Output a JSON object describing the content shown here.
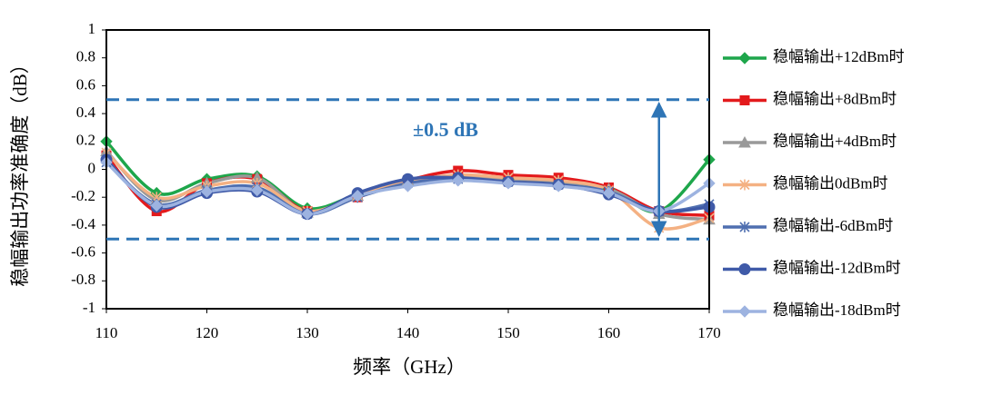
{
  "chart_data": {
    "type": "line",
    "x_label": "频率（GHz）",
    "y_label": "稳幅输出功率准确度（dB）",
    "x": [
      110,
      115,
      120,
      125,
      130,
      135,
      140,
      145,
      150,
      155,
      160,
      165,
      170
    ],
    "xlim": [
      110,
      170
    ],
    "xticks": [
      110,
      120,
      130,
      140,
      150,
      160,
      170
    ],
    "ylim": [
      -1,
      1
    ],
    "yticks": [
      1,
      0.8,
      0.6,
      0.4,
      0.2,
      0,
      -0.2,
      -0.4,
      -0.6,
      -0.8,
      -1
    ],
    "reference_lines": [
      0.5,
      -0.5
    ],
    "reference_color": "#2e75b6",
    "annotation": {
      "text": "±0.5 dB",
      "x": 165
    },
    "legend": "right",
    "series": [
      {
        "name": "稳幅输出+12dBm时",
        "color": "#1ea64b",
        "marker": "diamond",
        "values": [
          0.2,
          -0.17,
          -0.07,
          -0.05,
          -0.28,
          -0.18,
          -0.08,
          -0.05,
          -0.07,
          -0.1,
          -0.14,
          -0.3,
          0.07
        ]
      },
      {
        "name": "稳幅输出+8dBm时",
        "color": "#e31a1c",
        "marker": "square",
        "values": [
          0.1,
          -0.3,
          -0.1,
          -0.07,
          -0.3,
          -0.2,
          -0.08,
          -0.01,
          -0.04,
          -0.06,
          -0.13,
          -0.3,
          -0.33
        ]
      },
      {
        "name": "稳幅输出+4dBm时",
        "color": "#999999",
        "marker": "triangle",
        "values": [
          0.13,
          -0.22,
          -0.1,
          -0.06,
          -0.31,
          -0.19,
          -0.08,
          -0.05,
          -0.07,
          -0.09,
          -0.14,
          -0.32,
          -0.36
        ]
      },
      {
        "name": "稳幅输出0dBm时",
        "color": "#f4b183",
        "marker": "star",
        "values": [
          0.12,
          -0.2,
          -0.12,
          -0.1,
          -0.3,
          -0.19,
          -0.09,
          -0.04,
          -0.06,
          -0.08,
          -0.15,
          -0.42,
          -0.35
        ]
      },
      {
        "name": "稳幅输出-6dBm时",
        "color": "#4f6fb0",
        "marker": "star",
        "values": [
          0.05,
          -0.25,
          -0.15,
          -0.13,
          -0.32,
          -0.2,
          -0.1,
          -0.07,
          -0.09,
          -0.11,
          -0.16,
          -0.3,
          -0.25
        ]
      },
      {
        "name": "稳幅输出-12dBm时",
        "color": "#3f5aa8",
        "marker": "circle",
        "values": [
          0.07,
          -0.27,
          -0.17,
          -0.16,
          -0.32,
          -0.17,
          -0.07,
          -0.06,
          -0.09,
          -0.11,
          -0.18,
          -0.3,
          -0.27
        ]
      },
      {
        "name": "稳幅输出-18dBm时",
        "color": "#9db3e0",
        "marker": "diamond",
        "values": [
          0.05,
          -0.26,
          -0.16,
          -0.15,
          -0.32,
          -0.19,
          -0.12,
          -0.08,
          -0.1,
          -0.12,
          -0.17,
          -0.3,
          -0.1
        ]
      }
    ]
  }
}
